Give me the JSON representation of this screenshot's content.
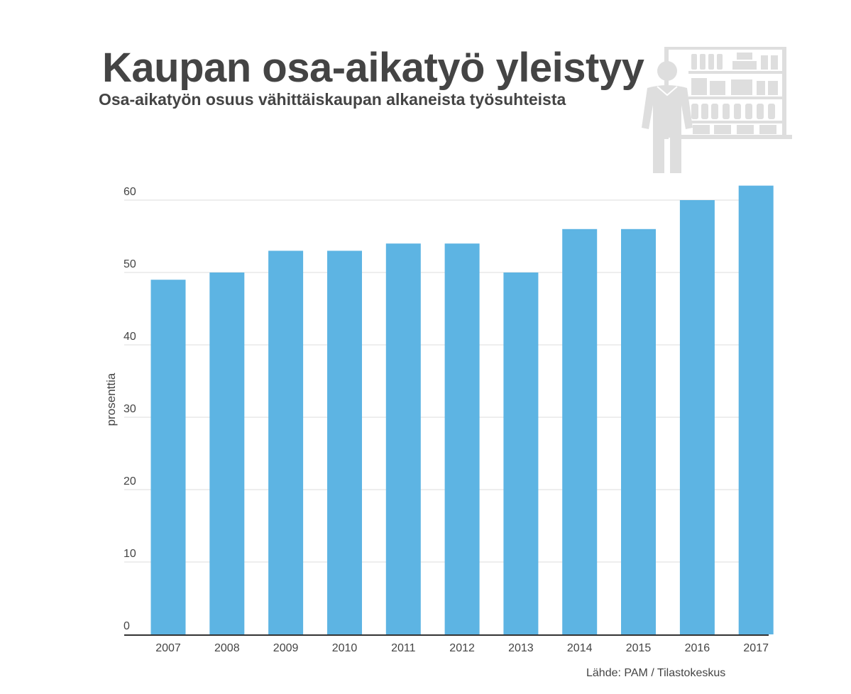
{
  "title": "Kaupan osa-aikatyö yleistyy",
  "subtitle": "Osa-aikatyön osuus vähittäiskaupan alkaneista työsuhteista",
  "source": "Lähde: PAM / Tilastokeskus",
  "illustration_icon": "shop-worker-shelves-icon",
  "colors": {
    "bar": "#5db4e3",
    "text": "#444444",
    "grid": "#dddddd",
    "axis": "#333333",
    "illustration": "#dedede"
  },
  "chart_data": {
    "type": "bar",
    "categories": [
      "2007",
      "2008",
      "2009",
      "2010",
      "2011",
      "2012",
      "2013",
      "2014",
      "2015",
      "2016",
      "2017"
    ],
    "values": [
      49,
      50,
      53,
      53,
      54,
      54,
      50,
      56,
      56,
      60,
      62
    ],
    "ylabel": "prosenttia",
    "ylim": [
      0,
      60
    ],
    "yticks": [
      "0",
      "10",
      "20",
      "30",
      "40",
      "50",
      "60"
    ],
    "grid": true,
    "legend": "none"
  }
}
